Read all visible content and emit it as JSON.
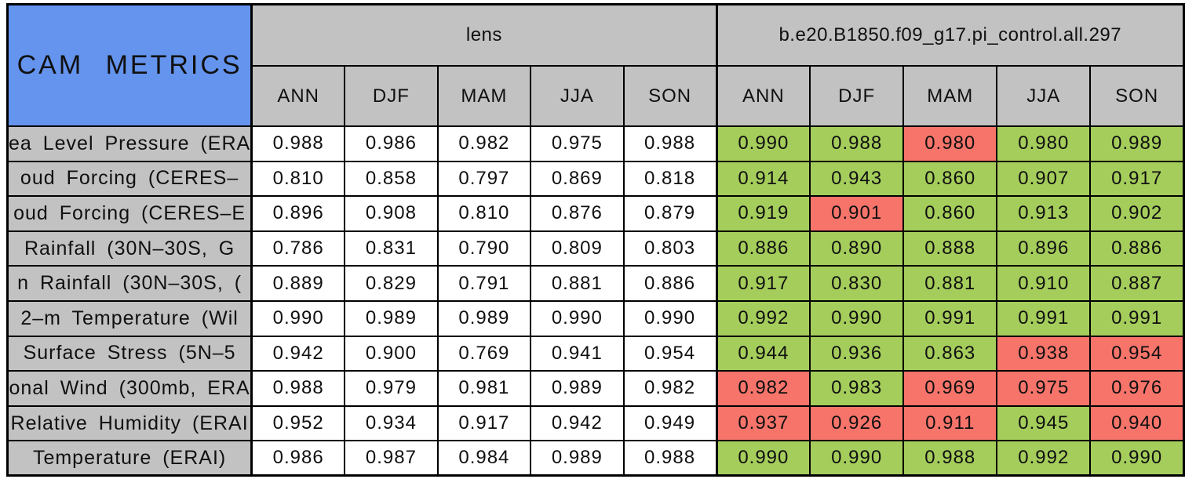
{
  "chart_data": {
    "type": "table",
    "corner_label": "CAM METRICS",
    "column_groups": [
      {
        "name": "lens"
      },
      {
        "name": "b.e20.B1850.f09_g17.pi_control.all.297"
      }
    ],
    "seasons": [
      "ANN",
      "DJF",
      "MAM",
      "JJA",
      "SON"
    ],
    "rows": [
      {
        "label": "ea Level Pressure (ERA",
        "lens": [
          "0.988",
          "0.986",
          "0.982",
          "0.975",
          "0.988"
        ],
        "control": [
          "0.990",
          "0.988",
          "0.980",
          "0.980",
          "0.989"
        ],
        "control_status": [
          "green",
          "green",
          "red",
          "green",
          "green"
        ]
      },
      {
        "label": "oud Forcing (CERES–",
        "lens": [
          "0.810",
          "0.858",
          "0.797",
          "0.869",
          "0.818"
        ],
        "control": [
          "0.914",
          "0.943",
          "0.860",
          "0.907",
          "0.917"
        ],
        "control_status": [
          "green",
          "green",
          "green",
          "green",
          "green"
        ]
      },
      {
        "label": "oud Forcing (CERES–E",
        "lens": [
          "0.896",
          "0.908",
          "0.810",
          "0.876",
          "0.879"
        ],
        "control": [
          "0.919",
          "0.901",
          "0.860",
          "0.913",
          "0.902"
        ],
        "control_status": [
          "green",
          "red",
          "green",
          "green",
          "green"
        ]
      },
      {
        "label": "Rainfall (30N–30S, G",
        "lens": [
          "0.786",
          "0.831",
          "0.790",
          "0.809",
          "0.803"
        ],
        "control": [
          "0.886",
          "0.890",
          "0.888",
          "0.896",
          "0.886"
        ],
        "control_status": [
          "green",
          "green",
          "green",
          "green",
          "green"
        ]
      },
      {
        "label": "n Rainfall (30N–30S, (",
        "lens": [
          "0.889",
          "0.829",
          "0.791",
          "0.881",
          "0.886"
        ],
        "control": [
          "0.917",
          "0.830",
          "0.881",
          "0.910",
          "0.887"
        ],
        "control_status": [
          "green",
          "green",
          "green",
          "green",
          "green"
        ]
      },
      {
        "label": "2–m Temperature (Wil",
        "lens": [
          "0.990",
          "0.989",
          "0.989",
          "0.990",
          "0.990"
        ],
        "control": [
          "0.992",
          "0.990",
          "0.991",
          "0.991",
          "0.991"
        ],
        "control_status": [
          "green",
          "green",
          "green",
          "green",
          "green"
        ]
      },
      {
        "label": "Surface Stress (5N–5",
        "lens": [
          "0.942",
          "0.900",
          "0.769",
          "0.941",
          "0.954"
        ],
        "control": [
          "0.944",
          "0.936",
          "0.863",
          "0.938",
          "0.954"
        ],
        "control_status": [
          "green",
          "green",
          "green",
          "red",
          "red"
        ]
      },
      {
        "label": "onal Wind (300mb, ERA",
        "lens": [
          "0.988",
          "0.979",
          "0.981",
          "0.989",
          "0.982"
        ],
        "control": [
          "0.982",
          "0.983",
          "0.969",
          "0.975",
          "0.976"
        ],
        "control_status": [
          "red",
          "green",
          "red",
          "red",
          "red"
        ]
      },
      {
        "label": "Relative Humidity (ERAI",
        "lens": [
          "0.952",
          "0.934",
          "0.917",
          "0.942",
          "0.949"
        ],
        "control": [
          "0.937",
          "0.926",
          "0.911",
          "0.945",
          "0.940"
        ],
        "control_status": [
          "red",
          "red",
          "red",
          "green",
          "red"
        ]
      },
      {
        "label": "Temperature (ERAI)",
        "lens": [
          "0.986",
          "0.987",
          "0.984",
          "0.989",
          "0.988"
        ],
        "control": [
          "0.990",
          "0.990",
          "0.988",
          "0.992",
          "0.990"
        ],
        "control_status": [
          "green",
          "green",
          "green",
          "green",
          "green"
        ]
      }
    ],
    "colors": {
      "green_cell": "#A5CD5B",
      "red_cell": "#F7746B",
      "header_gray": "#C2C2C2",
      "title_blue": "#6494ED",
      "plain_cell": "#FFFFFF",
      "border": "#000000"
    }
  }
}
